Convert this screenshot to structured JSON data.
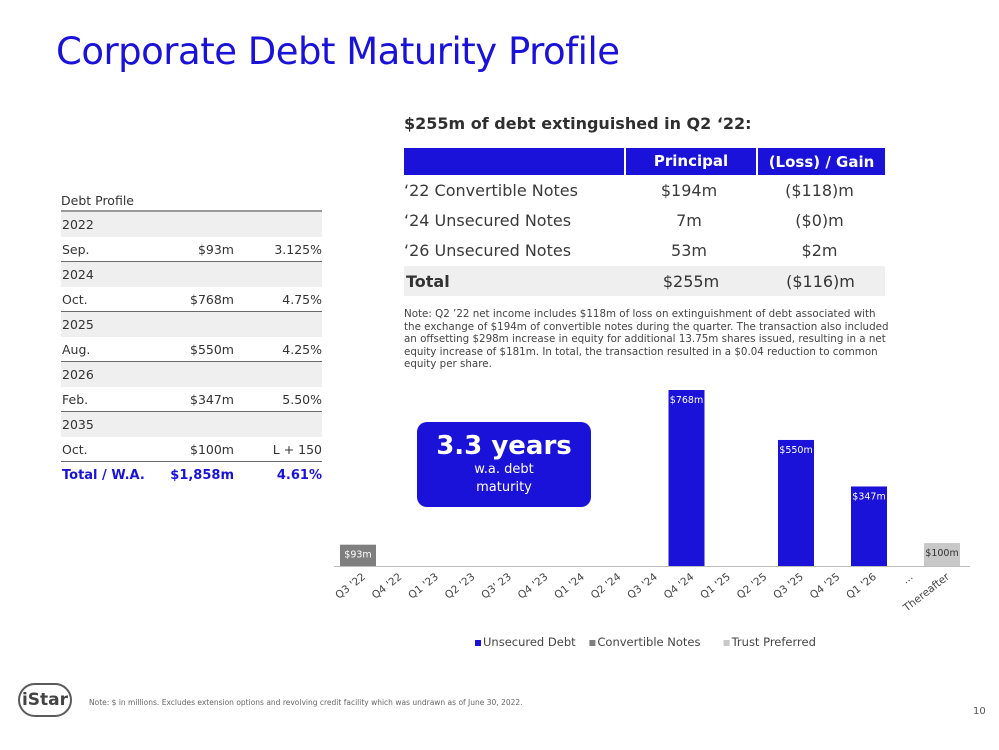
{
  "title": "Corporate Debt Maturity Profile",
  "debt_profile": {
    "header": "Debt Profile",
    "groups": [
      {
        "year": "2022",
        "month": "Sep.",
        "amount": "$93m",
        "rate": "3.125%"
      },
      {
        "year": "2024",
        "month": "Oct.",
        "amount": "$768m",
        "rate": "4.75%"
      },
      {
        "year": "2025",
        "month": "Aug.",
        "amount": "$550m",
        "rate": "4.25%"
      },
      {
        "year": "2026",
        "month": "Feb.",
        "amount": "$347m",
        "rate": "5.50%"
      },
      {
        "year": "2035",
        "month": "Oct.",
        "amount": "$100m",
        "rate": "L + 150"
      }
    ],
    "total": {
      "label": "Total / W.A.",
      "amount": "$1,858m",
      "rate": "4.61%"
    }
  },
  "extinguished": {
    "title": "$255m of debt extinguished in Q2 ‘22:",
    "columns": [
      "",
      "Principal",
      "(Loss) / Gain"
    ],
    "rows": [
      {
        "name": "‘22 Convertible Notes",
        "principal": "$194m",
        "gain": "($118)m"
      },
      {
        "name": "‘24 Unsecured Notes",
        "principal": "7m",
        "gain": "($0)m"
      },
      {
        "name": "‘26 Unsecured Notes",
        "principal": "53m",
        "gain": "$2m"
      }
    ],
    "total": {
      "name": "Total",
      "principal": "$255m",
      "gain": "($116)m"
    }
  },
  "note": "Note: Q2 ’22 net income includes $118m of loss on extinguishment of debt associated with the exchange of $194m of convertible notes during the quarter. The transaction also included an offsetting $298m increase in equity for additional 13.75m shares issued, resulting in a net equity increase of $181m. In total, the transaction resulted in a $0.04 reduction to common equity per share.",
  "callout": {
    "value": "3.3 years",
    "line1": "w.a. debt",
    "line2": "maturity"
  },
  "chart_data": {
    "type": "bar",
    "categories": [
      "Q3 '22",
      "Q4 '22",
      "Q1 '23",
      "Q2 '23",
      "Q3' 23",
      "Q4 '23",
      "Q1 '24",
      "Q2 '24",
      "Q3 '24",
      "Q4 '24",
      "Q1 '25",
      "Q2 '25",
      "Q3 '25",
      "Q4 '25",
      "Q1 '26",
      "...",
      "Thereafter"
    ],
    "series": [
      {
        "name": "Unsecured Debt",
        "color": "#1a12d9",
        "values": [
          0,
          0,
          0,
          0,
          0,
          0,
          0,
          0,
          0,
          768,
          0,
          0,
          550,
          0,
          347,
          0,
          0
        ]
      },
      {
        "name": "Convertible Notes",
        "color": "#7f7f7f",
        "values": [
          93,
          0,
          0,
          0,
          0,
          0,
          0,
          0,
          0,
          0,
          0,
          0,
          0,
          0,
          0,
          0,
          0
        ]
      },
      {
        "name": "Trust Preferred",
        "color": "#c8c8c8",
        "values": [
          0,
          0,
          0,
          0,
          0,
          0,
          0,
          0,
          0,
          0,
          0,
          0,
          0,
          0,
          0,
          0,
          100
        ]
      }
    ],
    "data_labels": [
      "$93m",
      "",
      "",
      "",
      "",
      "",
      "",
      "",
      "",
      "$768m",
      "",
      "",
      "$550m",
      "",
      "$347m",
      "",
      "$100m"
    ],
    "ylim": [
      0,
      768
    ],
    "grid": false,
    "legend_position": "bottom"
  },
  "footnote": "Note: $ in millions. Excludes extension options and revolving credit facility which was undrawn as of June 30, 2022.",
  "logo_text": "iStar",
  "page_number": "10"
}
